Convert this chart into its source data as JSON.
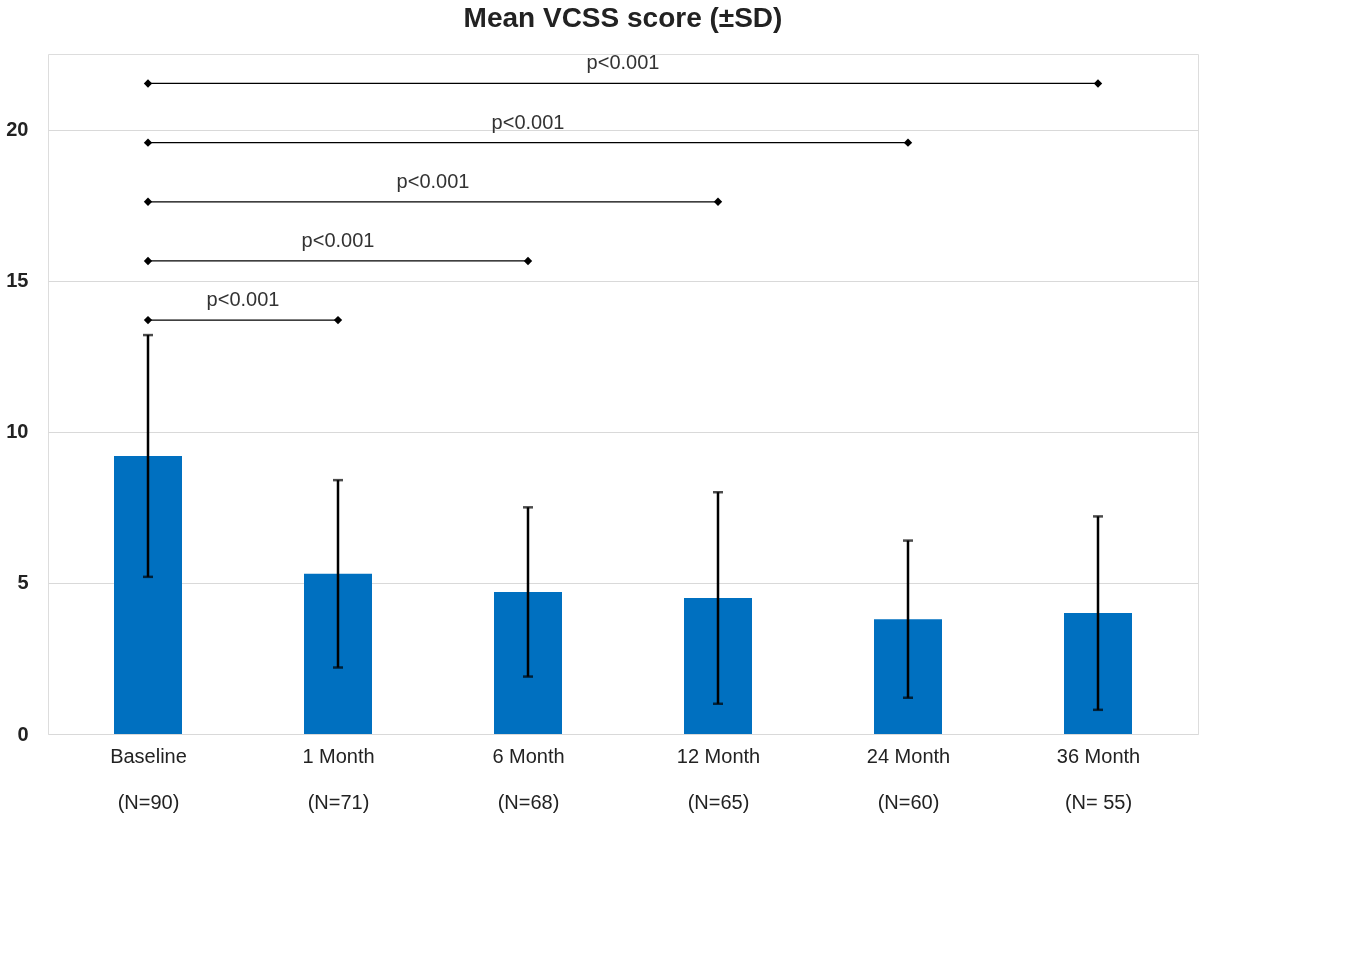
{
  "chart_data": {
    "type": "bar",
    "title": "Mean VCSS score (±SD)",
    "categories": [
      "Baseline\n(N=90)",
      "1 Month\n(N=71)",
      "6 Month\n(N=68)",
      "12 Month\n(N=65)",
      "24 Month\n(N=60)",
      "36 Month\n(N= 55)"
    ],
    "values": [
      9.2,
      5.3,
      4.7,
      4.5,
      3.8,
      4.0
    ],
    "errors": [
      4.0,
      3.1,
      2.8,
      3.5,
      2.6,
      3.2
    ],
    "color": "#0070c0",
    "ylim": [
      0,
      22.5
    ],
    "yticks": [
      0,
      5,
      10,
      15,
      20
    ],
    "grid": "y",
    "annotations": [
      "p<0.001",
      "p<0.001",
      "p<0.001",
      "p<0.001",
      "p<0.001"
    ]
  }
}
